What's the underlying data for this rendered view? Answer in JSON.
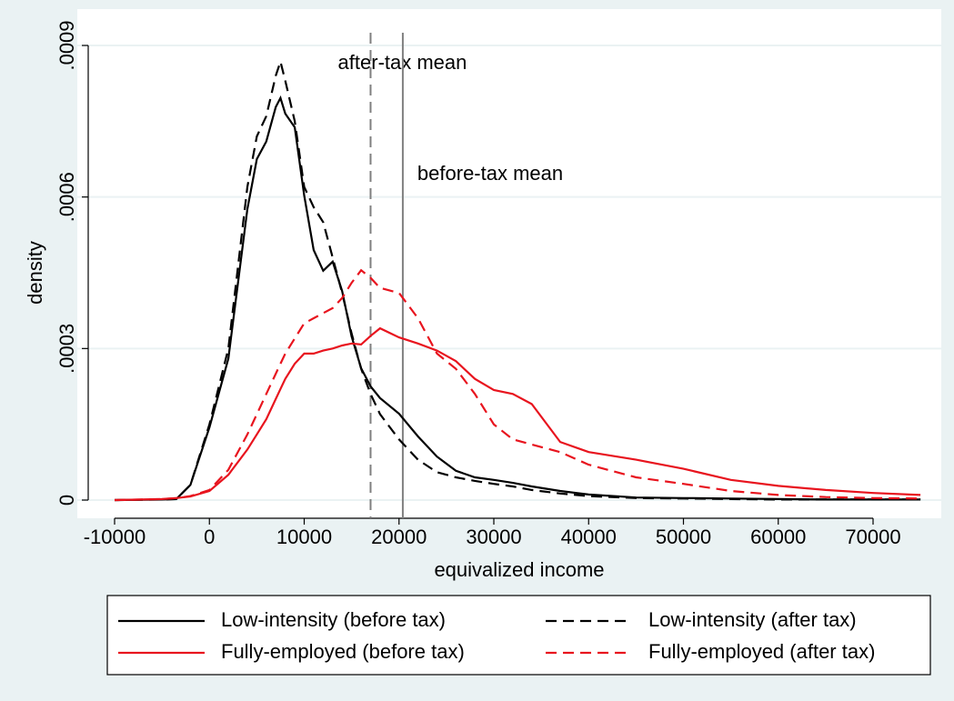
{
  "chart_data": {
    "type": "line",
    "x_label": "equivalized income",
    "y_label": "density",
    "x": [
      -10000,
      -5000,
      -3500,
      -2000,
      0,
      2000,
      4000,
      5000,
      6000,
      7000,
      7500,
      8000,
      9000,
      10000,
      11000,
      12000,
      13000,
      14000,
      15000,
      16000,
      17000,
      18000,
      20000,
      22000,
      24000,
      26000,
      28000,
      30000,
      32000,
      34000,
      37000,
      40000,
      45000,
      50000,
      55000,
      60000,
      65000,
      70000,
      75000
    ],
    "series": [
      {
        "name": "Low-intensity (before tax)",
        "color": "#000000",
        "dash": "solid",
        "values": [
          0,
          1e-06,
          2e-06,
          3e-05,
          0.000144,
          0.00028,
          0.000576,
          0.000675,
          0.00071,
          0.000778,
          0.000796,
          0.000765,
          0.000738,
          0.000603,
          0.000495,
          0.000454,
          0.000472,
          0.000414,
          0.000324,
          0.000261,
          0.000225,
          0.000202,
          0.000171,
          0.000126,
          8.6e-05,
          5.8e-05,
          4.5e-05,
          4e-05,
          3.4e-05,
          2.7e-05,
          1.8e-05,
          1.1e-05,
          5e-06,
          4e-06,
          3e-06,
          2e-06,
          1e-06,
          1e-06,
          1e-06
        ]
      },
      {
        "name": "Low-intensity (after tax)",
        "color": "#000000",
        "dash": "dashed",
        "values": [
          0,
          1e-06,
          2e-06,
          3e-05,
          0.00015,
          0.0003,
          0.00062,
          0.00072,
          0.00076,
          0.00084,
          0.000868,
          0.00083,
          0.00075,
          0.00062,
          0.00058,
          0.00055,
          0.00048,
          0.00041,
          0.00033,
          0.00026,
          0.00021,
          0.00017,
          0.00012,
          8e-05,
          5.5e-05,
          4.5e-05,
          3.8e-05,
          3.2e-05,
          2.7e-05,
          2e-05,
          1.3e-05,
          8e-06,
          4e-06,
          3e-06,
          2e-06,
          1e-06,
          1e-06,
          1e-06,
          1e-06
        ]
      },
      {
        "name": "Fully-employed (before tax)",
        "color": "#e8141e",
        "dash": "solid",
        "values": [
          0,
          2e-06,
          4e-06,
          7e-06,
          1.8e-05,
          5e-05,
          0.0001,
          0.00013,
          0.00016,
          0.0002,
          0.00022,
          0.00024,
          0.00027,
          0.00029,
          0.00029,
          0.000296,
          0.0003,
          0.000306,
          0.00031,
          0.000308,
          0.000325,
          0.00034,
          0.000322,
          0.00031,
          0.000296,
          0.000275,
          0.00024,
          0.000218,
          0.00021,
          0.00019,
          0.000115,
          9.5e-05,
          8e-05,
          6.2e-05,
          4e-05,
          2.8e-05,
          2e-05,
          1.4e-05,
          1e-05
        ]
      },
      {
        "name": "Fully-employed (after tax)",
        "color": "#e8141e",
        "dash": "dashed",
        "values": [
          0,
          2e-06,
          4e-06,
          8e-06,
          2e-05,
          6e-05,
          0.00013,
          0.00017,
          0.00021,
          0.00025,
          0.00027,
          0.00029,
          0.00032,
          0.00035,
          0.00036,
          0.00037,
          0.00038,
          0.0004,
          0.00043,
          0.000455,
          0.00044,
          0.00042,
          0.00041,
          0.00036,
          0.00029,
          0.00026,
          0.00021,
          0.00015,
          0.00012,
          0.00011,
          9.5e-05,
          7e-05,
          4.5e-05,
          3.2e-05,
          1.8e-05,
          1e-05,
          6e-06,
          4e-06,
          3e-06
        ]
      }
    ],
    "reference_lines": [
      {
        "value": 17000,
        "label": "after-tax mean",
        "color": "#808080",
        "dash": "dashed"
      },
      {
        "value": 20400,
        "label": "before-tax mean",
        "color": "#808080",
        "dash": "solid"
      }
    ],
    "xlim": [
      -13933,
      77194
    ],
    "ylim": [
      -3.6e-05,
      0.000972
    ],
    "xticks": [
      -10000,
      0,
      10000,
      20000,
      30000,
      40000,
      50000,
      60000,
      70000
    ],
    "yticks": [
      0,
      {
        "value": 0.0003,
        "label": ".0003"
      },
      {
        "value": 0.0006,
        "label": ".0006"
      },
      {
        "value": 0.0009,
        "label": ".0009"
      }
    ],
    "grid": true,
    "legend_position": "bottom"
  }
}
